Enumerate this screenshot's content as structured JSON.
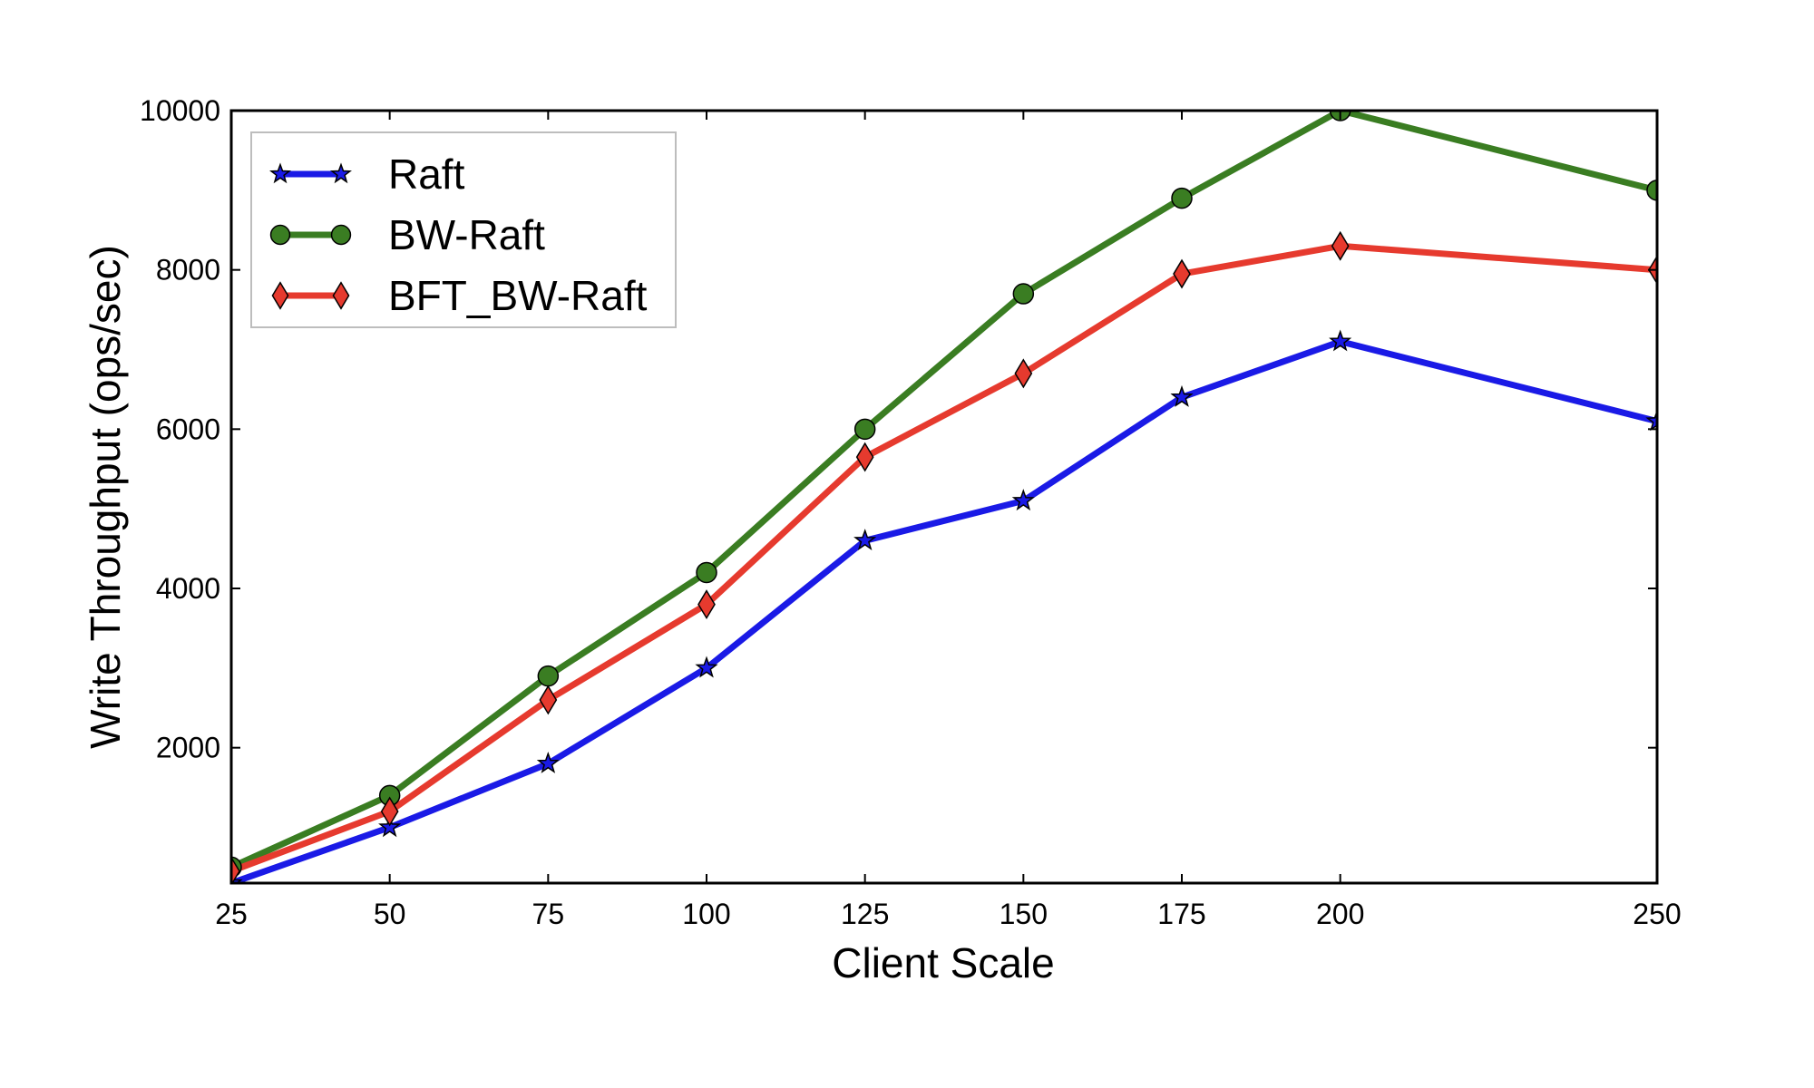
{
  "chart_data": {
    "type": "line",
    "xlabel": "Client Scale",
    "ylabel": "Write Throughput (ops/sec)",
    "x": [
      25,
      50,
      75,
      100,
      125,
      150,
      175,
      200,
      250
    ],
    "xticks": [
      "25",
      "50",
      "75",
      "100",
      "125",
      "150",
      "175",
      "200",
      "250"
    ],
    "yticks": [
      "2000",
      "4000",
      "6000",
      "8000",
      "10000"
    ],
    "ylim": [
      300,
      10000
    ],
    "grid": false,
    "legend_position": "top-left",
    "series": [
      {
        "name": "Raft",
        "color": "#1a1ae6",
        "marker": "star",
        "values": [
          300,
          1000,
          1800,
          3000,
          4600,
          5100,
          6400,
          7100,
          6100
        ]
      },
      {
        "name": "BW-Raft",
        "color": "#3a7d22",
        "marker": "circle",
        "values": [
          500,
          1400,
          2900,
          4200,
          6000,
          7700,
          8900,
          10000,
          9000
        ]
      },
      {
        "name": "BFT_BW-Raft",
        "color": "#e63a2e",
        "marker": "diamond",
        "values": [
          450,
          1200,
          2600,
          3800,
          5650,
          6700,
          7950,
          8300,
          8000
        ]
      }
    ]
  }
}
